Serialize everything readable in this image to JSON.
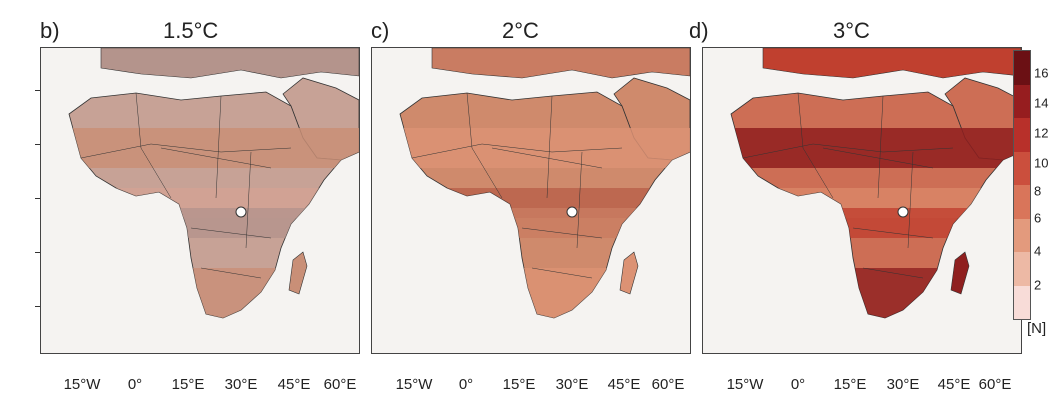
{
  "panels": [
    {
      "letter": "b)",
      "title": "1.5°C",
      "palette": [
        "#c7a296",
        "#b4948c",
        "#c98f77",
        "#d6a393"
      ]
    },
    {
      "letter": "c)",
      "title": "2°C",
      "palette": [
        "#cf8a6c",
        "#c97c62",
        "#dc9274",
        "#b55a45"
      ]
    },
    {
      "letter": "d)",
      "title": "3°C",
      "palette": [
        "#cd6e55",
        "#c0402f",
        "#8f1f1f",
        "#dd8a6b"
      ]
    }
  ],
  "x_ticks": [
    "15°W",
    "0°",
    "15°E",
    "30°E",
    "45°E",
    "60°E"
  ],
  "colorbar": {
    "ticks": [
      "2",
      "4",
      "6",
      "8",
      "10",
      "12",
      "14",
      "16"
    ],
    "unit": "[N]",
    "colors": [
      "#f8dcd8",
      "#edb9a5",
      "#e39a7d",
      "#d9755a",
      "#cb4f3d",
      "#b8302a",
      "#961d1f",
      "#6b1014"
    ]
  },
  "colors": {
    "background": "#f5f3f1",
    "sea_ice_white": "#ffffff",
    "borders": "#333333"
  }
}
